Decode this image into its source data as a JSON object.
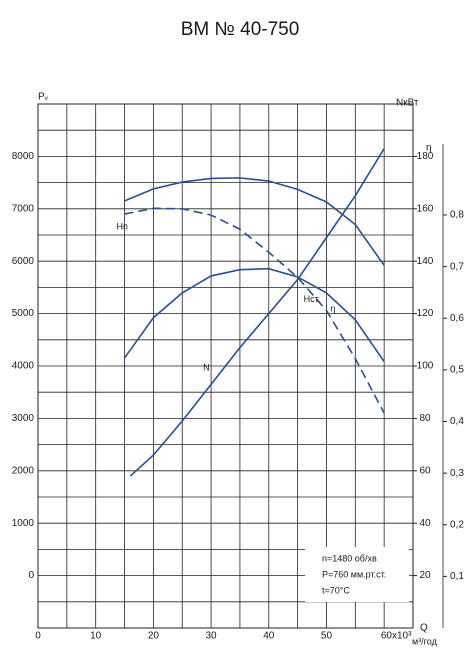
{
  "chart_data": {
    "type": "line",
    "title": "ВМ № 40-750",
    "x_label": "Q",
    "x_unit": "м³/год",
    "y_label": "Pᵥ",
    "y2_label": "NкВт",
    "y3_label": "η",
    "xlim": [
      0,
      65
    ],
    "xticks": [
      0,
      10,
      20,
      30,
      40,
      50,
      {
        "value": 60,
        "label": "60x10³"
      }
    ],
    "xminorticks": [
      5,
      15,
      25,
      35,
      45,
      55,
      65
    ],
    "ylim": [
      -1000,
      9000
    ],
    "yticks": [
      0,
      1000,
      2000,
      3000,
      4000,
      5000,
      6000,
      7000,
      8000
    ],
    "yminorticks": [
      -500,
      500,
      1500,
      2500,
      3500,
      4500,
      5500,
      6500,
      7500,
      8500
    ],
    "y2lim": [
      0,
      200
    ],
    "y2ticks": [
      20,
      40,
      60,
      80,
      100,
      120,
      140,
      160,
      180
    ],
    "y3lim": [
      0,
      1.015
    ],
    "y3ticks": [
      {
        "value": 0.1,
        "label": "0,1"
      },
      {
        "value": 0.2,
        "label": "0,2"
      },
      {
        "value": 0.3,
        "label": "0,3"
      },
      {
        "value": 0.4,
        "label": "0,4"
      },
      {
        "value": 0.5,
        "label": "0,5"
      },
      {
        "value": 0.6,
        "label": "0,6"
      },
      {
        "value": 0.7,
        "label": "0,7"
      },
      {
        "value": 0.8,
        "label": "0,8"
      }
    ],
    "grid": true,
    "x": [
      15,
      20,
      25,
      30,
      35,
      40,
      45,
      50,
      55,
      60
    ],
    "series": [
      {
        "name": "N",
        "color": "#2b4f8f",
        "axis": "y2",
        "x": [
          16,
          20,
          25,
          30,
          35,
          40,
          45,
          50,
          55,
          60
        ],
        "values": [
          58,
          66,
          79,
          93,
          107,
          120,
          133,
          149,
          165,
          183
        ]
      },
      {
        "name": "Hп",
        "color": "#2b4f8f",
        "values": [
          7150,
          7380,
          7510,
          7580,
          7590,
          7530,
          7370,
          7130,
          6700,
          5920
        ]
      },
      {
        "name": "η",
        "color": "#2b4f8f",
        "axis": "y3",
        "values": [
          0.523,
          0.601,
          0.649,
          0.682,
          0.694,
          0.696,
          0.68,
          0.649,
          0.597,
          0.516
        ]
      },
      {
        "name": "Hст.",
        "color": "#2b4f8f",
        "dashed": true,
        "values": [
          6900,
          7010,
          7000,
          6880,
          6610,
          6170,
          5690,
          5060,
          4140,
          3100
        ]
      }
    ],
    "notes": [
      "n=1480 об/хв",
      "P=760 мм.рт.ст.",
      "t=70°C"
    ]
  }
}
